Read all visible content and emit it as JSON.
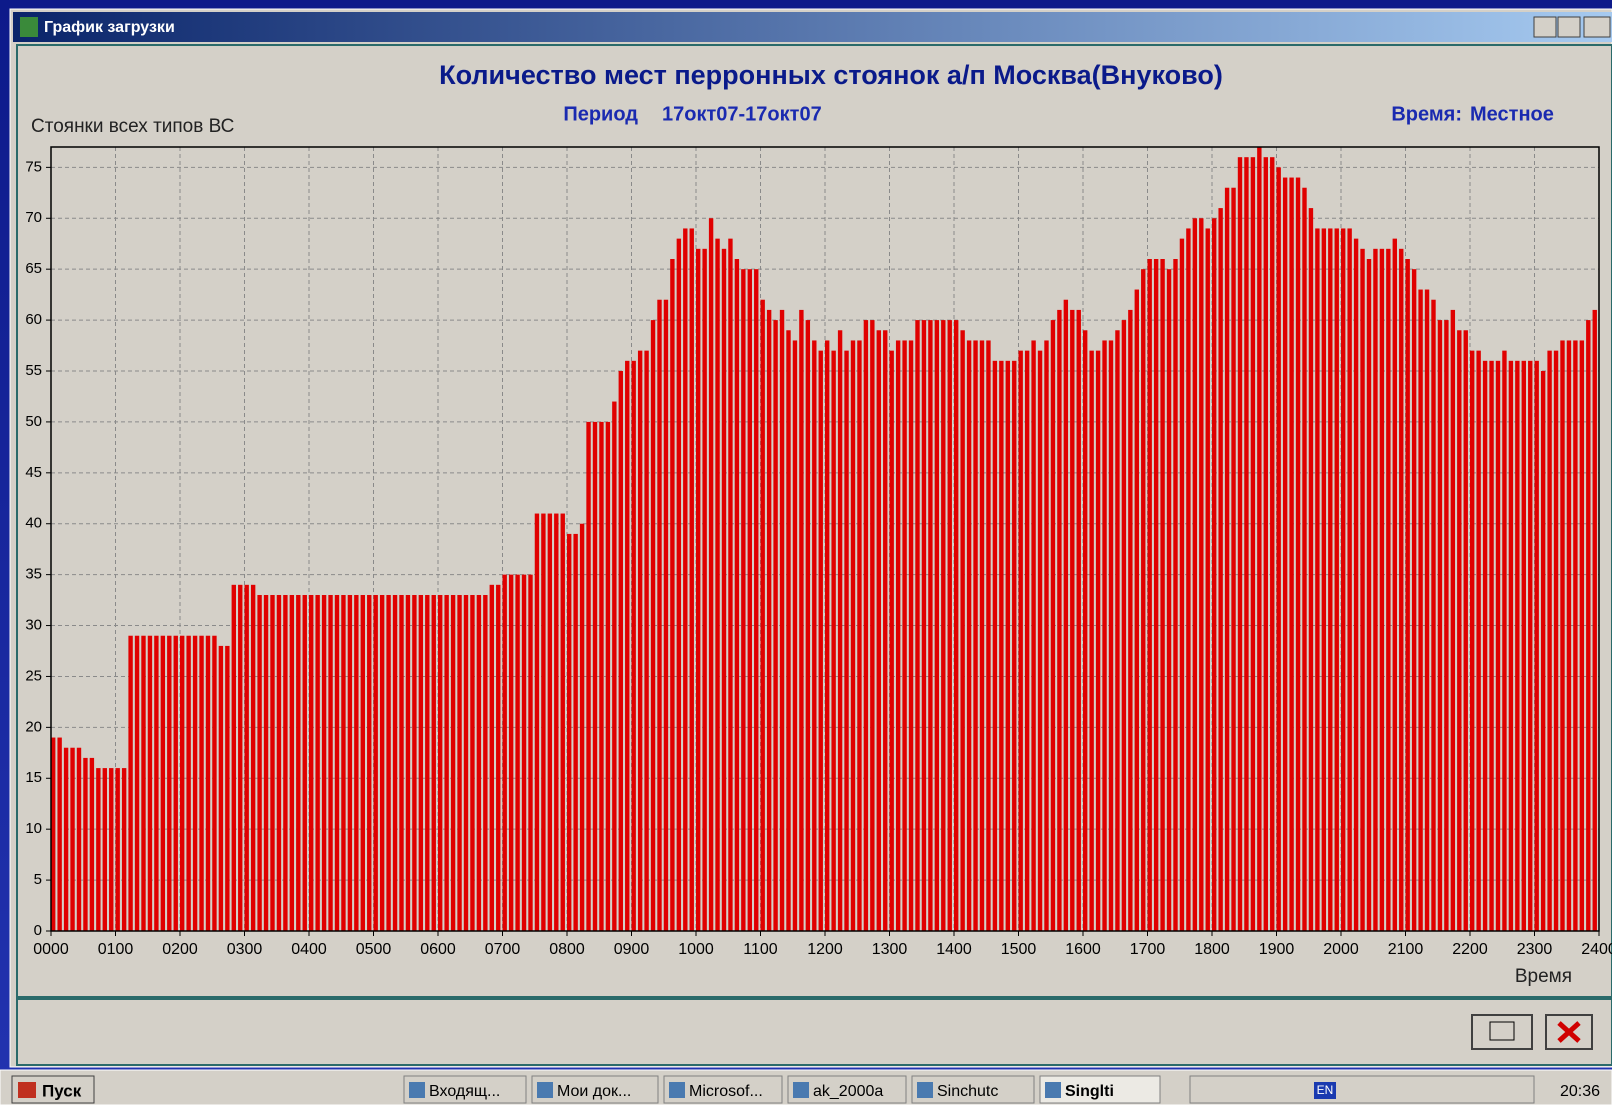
{
  "window": {
    "title": "График загрузки"
  },
  "chart_data": {
    "type": "bar",
    "title": "Количество мест перронных стоянок а/п Москва(Внуково)",
    "period_label": "Период",
    "period": "17окт07-17окт07",
    "time_label": "Время:",
    "time_zone": "Местное",
    "ylabel": "Стоянки всех типов ВС",
    "xlabel": "Время",
    "color": "#e00000",
    "grid": true,
    "xlim": [
      0,
      1440
    ],
    "ylim": [
      0,
      77
    ],
    "yticks": [
      0,
      5,
      10,
      15,
      20,
      25,
      30,
      35,
      40,
      45,
      50,
      55,
      60,
      65,
      70,
      75
    ],
    "xticks": [
      {
        "value": 0,
        "label": "0000"
      },
      {
        "value": 60,
        "label": "0100"
      },
      {
        "value": 120,
        "label": "0200"
      },
      {
        "value": 180,
        "label": "0300"
      },
      {
        "value": 240,
        "label": "0400"
      },
      {
        "value": 300,
        "label": "0500"
      },
      {
        "value": 360,
        "label": "0600"
      },
      {
        "value": 420,
        "label": "0700"
      },
      {
        "value": 480,
        "label": "0800"
      },
      {
        "value": 540,
        "label": "0900"
      },
      {
        "value": 600,
        "label": "1000"
      },
      {
        "value": 660,
        "label": "1100"
      },
      {
        "value": 720,
        "label": "1200"
      },
      {
        "value": 780,
        "label": "1300"
      },
      {
        "value": 840,
        "label": "1400"
      },
      {
        "value": 900,
        "label": "1500"
      },
      {
        "value": 960,
        "label": "1600"
      },
      {
        "value": 1020,
        "label": "1700"
      },
      {
        "value": 1080,
        "label": "1800"
      },
      {
        "value": 1140,
        "label": "1900"
      },
      {
        "value": 1200,
        "label": "2000"
      },
      {
        "value": 1260,
        "label": "2100"
      },
      {
        "value": 1320,
        "label": "2200"
      },
      {
        "value": 1380,
        "label": "2300"
      },
      {
        "value": 1440,
        "label": "2400"
      }
    ],
    "x": [
      0,
      6,
      12,
      18,
      24,
      30,
      36,
      42,
      48,
      54,
      60,
      66,
      72,
      78,
      84,
      90,
      96,
      102,
      108,
      114,
      120,
      126,
      132,
      138,
      144,
      150,
      156,
      162,
      168,
      174,
      180,
      186,
      192,
      198,
      204,
      210,
      216,
      222,
      228,
      234,
      240,
      246,
      252,
      258,
      264,
      270,
      276,
      282,
      288,
      294,
      300,
      306,
      312,
      318,
      324,
      330,
      336,
      342,
      348,
      354,
      360,
      366,
      372,
      378,
      384,
      390,
      396,
      402,
      408,
      414,
      420,
      426,
      432,
      438,
      444,
      450,
      456,
      462,
      468,
      474,
      480,
      486,
      492,
      498,
      504,
      510,
      516,
      522,
      528,
      534,
      540,
      546,
      552,
      558,
      564,
      570,
      576,
      582,
      588,
      594,
      600,
      606,
      612,
      618,
      624,
      630,
      636,
      642,
      648,
      654,
      660,
      666,
      672,
      678,
      684,
      690,
      696,
      702,
      708,
      714,
      720,
      726,
      732,
      738,
      744,
      750,
      756,
      762,
      768,
      774,
      780,
      786,
      792,
      798,
      804,
      810,
      816,
      822,
      828,
      834,
      840,
      846,
      852,
      858,
      864,
      870,
      876,
      882,
      888,
      894,
      900,
      906,
      912,
      918,
      924,
      930,
      936,
      942,
      948,
      954,
      960,
      966,
      972,
      978,
      984,
      990,
      996,
      1002,
      1008,
      1014,
      1020,
      1026,
      1032,
      1038,
      1044,
      1050,
      1056,
      1062,
      1068,
      1074,
      1080,
      1086,
      1092,
      1098,
      1104,
      1110,
      1116,
      1122,
      1128,
      1134,
      1140,
      1146,
      1152,
      1158,
      1164,
      1170,
      1176,
      1182,
      1188,
      1194,
      1200,
      1206,
      1212,
      1218,
      1224,
      1230,
      1236,
      1242,
      1248,
      1254,
      1260,
      1266,
      1272,
      1278,
      1284,
      1290,
      1296,
      1302,
      1308,
      1314,
      1320,
      1326,
      1332,
      1338,
      1344,
      1350,
      1356,
      1362,
      1368,
      1374,
      1380,
      1386,
      1392,
      1398,
      1404,
      1410,
      1416,
      1422,
      1428,
      1434
    ],
    "values": [
      19,
      19,
      18,
      18,
      18,
      17,
      17,
      16,
      16,
      16,
      16,
      16,
      29,
      29,
      29,
      29,
      29,
      29,
      29,
      29,
      29,
      29,
      29,
      29,
      29,
      29,
      28,
      28,
      34,
      34,
      34,
      34,
      33,
      33,
      33,
      33,
      33,
      33,
      33,
      33,
      33,
      33,
      33,
      33,
      33,
      33,
      33,
      33,
      33,
      33,
      33,
      33,
      33,
      33,
      33,
      33,
      33,
      33,
      33,
      33,
      33,
      33,
      33,
      33,
      33,
      33,
      33,
      33,
      34,
      34,
      35,
      35,
      35,
      35,
      35,
      41,
      41,
      41,
      41,
      41,
      39,
      39,
      40,
      50,
      50,
      50,
      50,
      52,
      55,
      56,
      56,
      57,
      57,
      60,
      62,
      62,
      66,
      68,
      69,
      69,
      67,
      67,
      70,
      68,
      67,
      68,
      66,
      65,
      65,
      65,
      62,
      61,
      60,
      61,
      59,
      58,
      61,
      60,
      58,
      57,
      58,
      57,
      59,
      57,
      58,
      58,
      60,
      60,
      59,
      59,
      57,
      58,
      58,
      58,
      60,
      60,
      60,
      60,
      60,
      60,
      60,
      59,
      58,
      58,
      58,
      58,
      56,
      56,
      56,
      56,
      57,
      57,
      58,
      57,
      58,
      60,
      61,
      62,
      61,
      61,
      59,
      57,
      57,
      58,
      58,
      59,
      60,
      61,
      63,
      65,
      66,
      66,
      66,
      65,
      66,
      68,
      69,
      70,
      70,
      69,
      70,
      71,
      73,
      73,
      76,
      76,
      76,
      77,
      76,
      76,
      75,
      74,
      74,
      74,
      73,
      71,
      69,
      69,
      69,
      69,
      69,
      69,
      68,
      67,
      66,
      67,
      67,
      67,
      68,
      67,
      66,
      65,
      63,
      63,
      62,
      60,
      60,
      61,
      59,
      59,
      57,
      57,
      56,
      56,
      56,
      57,
      56,
      56,
      56,
      56,
      56,
      55,
      57,
      57,
      58,
      58,
      58,
      58,
      60,
      61
    ]
  },
  "taskbar": {
    "start": "Пуск",
    "items": [
      "Входящ...",
      "Мои док...",
      "Microsof...",
      "ak_2000a",
      "Sinchutc",
      "Singlti"
    ],
    "language": "EN",
    "clock": "20:36"
  }
}
